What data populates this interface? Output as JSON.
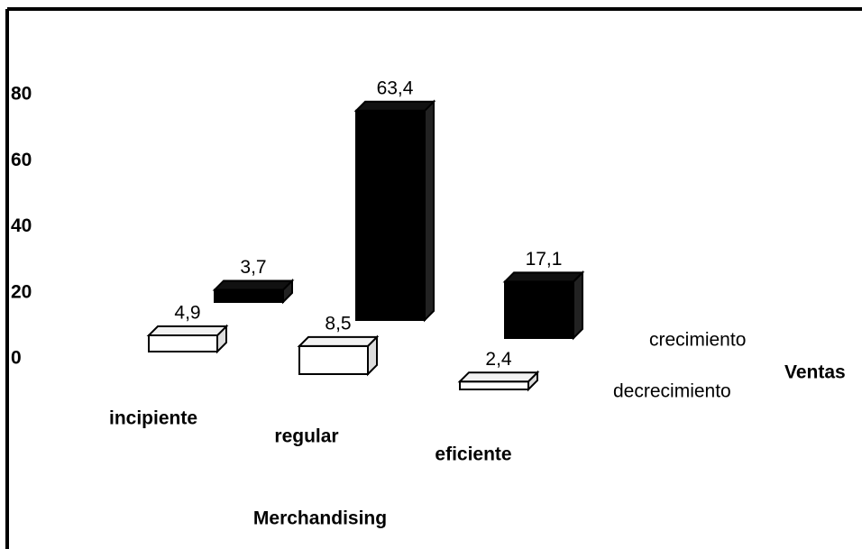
{
  "chart_data": {
    "type": "bar3d",
    "categories": [
      "incipiente",
      "regular",
      "eficiente"
    ],
    "series": [
      {
        "name": "crecimiento",
        "color": "#000000",
        "values": [
          3.7,
          63.4,
          17.1
        ],
        "value_labels": [
          "3,7",
          "63,4",
          "17,1"
        ]
      },
      {
        "name": "decrecimiento",
        "color": "#ffffff",
        "values": [
          4.9,
          8.5,
          2.4
        ],
        "value_labels": [
          "4,9",
          "8,5",
          "2,4"
        ]
      }
    ],
    "ylim": [
      0,
      80
    ],
    "yticks": [
      0,
      20,
      40,
      60,
      80
    ],
    "xlabel": "Merchandising",
    "zlabel": "Ventas"
  }
}
